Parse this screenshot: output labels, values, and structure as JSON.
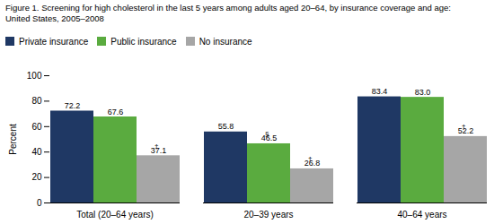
{
  "chart_data": {
    "type": "bar",
    "title": "Figure 1. Screening for high cholesterol in the last 5 years among adults aged 20–64, by insurance coverage and age:",
    "subtitle": "United States, 2005–2008",
    "categories": [
      "Total (20–64 years)",
      "20–39 years",
      "40–64 years"
    ],
    "series": [
      {
        "name": "Private insurance",
        "color": "#1f3864",
        "values": [
          72.2,
          55.8,
          83.4
        ],
        "value_labels": [
          "72.2",
          "55.8",
          "83.4"
        ],
        "daggers": [
          null,
          null,
          null
        ]
      },
      {
        "name": "Public insurance",
        "color": "#5aab3f",
        "values": [
          67.6,
          46.5,
          83.0
        ],
        "value_labels": [
          "67.6",
          "46.5",
          "83.0"
        ],
        "daggers": [
          null,
          "§",
          null
        ]
      },
      {
        "name": "No insurance",
        "color": "#a6a6a6",
        "values": [
          37.1,
          26.8,
          52.2
        ],
        "value_labels": [
          "37.1",
          "26.8",
          "52.2"
        ],
        "daggers": [
          "†",
          "†",
          "†"
        ]
      }
    ],
    "ylabel": "Percent",
    "ylim": [
      0,
      100
    ],
    "yticks": [
      0,
      20,
      40,
      60,
      80,
      100
    ],
    "grid": false,
    "legend": "top",
    "data_labels": true
  }
}
